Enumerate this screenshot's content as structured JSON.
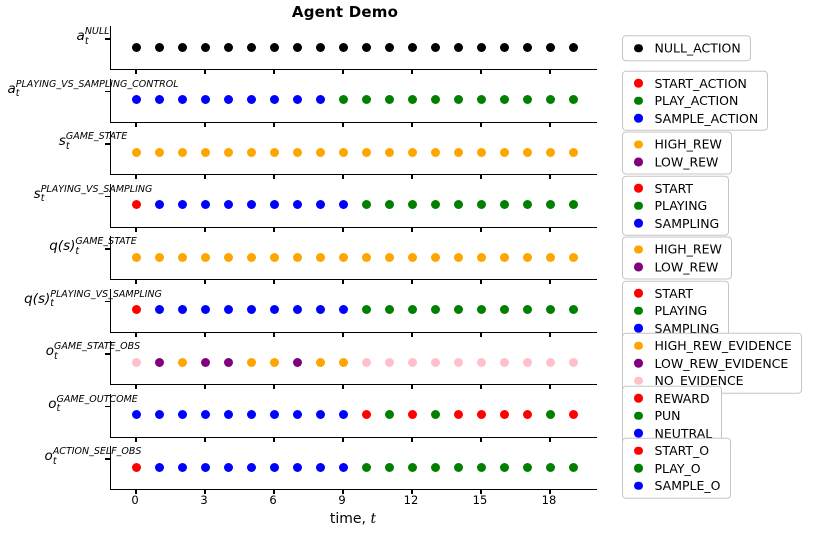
{
  "title": "Agent Demo",
  "xlabel_prefix": "time, ",
  "xlabel_var": "t",
  "chart_data": {
    "type": "scatter",
    "title": "Agent Demo",
    "xlabel": "time, t",
    "x_ticks": [
      0,
      3,
      6,
      9,
      12,
      15,
      18
    ],
    "x_range": [
      0,
      19
    ],
    "n_points": 20,
    "legend_position": "right of each subplot",
    "grid": false,
    "palette": {
      "black": "#000000",
      "red": "#ff0000",
      "green": "#008000",
      "blue": "#0000ff",
      "orange": "#ffa500",
      "purple": "#800080",
      "pink": "#ffc0cb"
    },
    "rows": [
      {
        "ylabel_base": "a",
        "ylabel_sub": "t",
        "ylabel_sup": "NULL",
        "legend": [
          {
            "label": "NULL_ACTION",
            "color": "black"
          }
        ],
        "values": [
          "NULL_ACTION",
          "NULL_ACTION",
          "NULL_ACTION",
          "NULL_ACTION",
          "NULL_ACTION",
          "NULL_ACTION",
          "NULL_ACTION",
          "NULL_ACTION",
          "NULL_ACTION",
          "NULL_ACTION",
          "NULL_ACTION",
          "NULL_ACTION",
          "NULL_ACTION",
          "NULL_ACTION",
          "NULL_ACTION",
          "NULL_ACTION",
          "NULL_ACTION",
          "NULL_ACTION",
          "NULL_ACTION",
          "NULL_ACTION"
        ]
      },
      {
        "ylabel_base": "a",
        "ylabel_sub": "t",
        "ylabel_sup": "PLAYING_VS_SAMPLING_CONTROL",
        "legend": [
          {
            "label": "START_ACTION",
            "color": "red"
          },
          {
            "label": "PLAY_ACTION",
            "color": "green"
          },
          {
            "label": "SAMPLE_ACTION",
            "color": "blue"
          }
        ],
        "values": [
          "SAMPLE_ACTION",
          "SAMPLE_ACTION",
          "SAMPLE_ACTION",
          "SAMPLE_ACTION",
          "SAMPLE_ACTION",
          "SAMPLE_ACTION",
          "SAMPLE_ACTION",
          "SAMPLE_ACTION",
          "SAMPLE_ACTION",
          "PLAY_ACTION",
          "PLAY_ACTION",
          "PLAY_ACTION",
          "PLAY_ACTION",
          "PLAY_ACTION",
          "PLAY_ACTION",
          "PLAY_ACTION",
          "PLAY_ACTION",
          "PLAY_ACTION",
          "PLAY_ACTION",
          "PLAY_ACTION"
        ]
      },
      {
        "ylabel_base": "s",
        "ylabel_sub": "t",
        "ylabel_sup": "GAME_STATE",
        "legend": [
          {
            "label": "HIGH_REW",
            "color": "orange"
          },
          {
            "label": "LOW_REW",
            "color": "purple"
          }
        ],
        "values": [
          "HIGH_REW",
          "HIGH_REW",
          "HIGH_REW",
          "HIGH_REW",
          "HIGH_REW",
          "HIGH_REW",
          "HIGH_REW",
          "HIGH_REW",
          "HIGH_REW",
          "HIGH_REW",
          "HIGH_REW",
          "HIGH_REW",
          "HIGH_REW",
          "HIGH_REW",
          "HIGH_REW",
          "HIGH_REW",
          "HIGH_REW",
          "HIGH_REW",
          "HIGH_REW",
          "HIGH_REW"
        ]
      },
      {
        "ylabel_base": "s",
        "ylabel_sub": "t",
        "ylabel_sup": "PLAYING_VS_SAMPLING",
        "legend": [
          {
            "label": "START",
            "color": "red"
          },
          {
            "label": "PLAYING",
            "color": "green"
          },
          {
            "label": "SAMPLING",
            "color": "blue"
          }
        ],
        "values": [
          "START",
          "SAMPLING",
          "SAMPLING",
          "SAMPLING",
          "SAMPLING",
          "SAMPLING",
          "SAMPLING",
          "SAMPLING",
          "SAMPLING",
          "SAMPLING",
          "PLAYING",
          "PLAYING",
          "PLAYING",
          "PLAYING",
          "PLAYING",
          "PLAYING",
          "PLAYING",
          "PLAYING",
          "PLAYING",
          "PLAYING"
        ]
      },
      {
        "ylabel_base": "q(s)",
        "ylabel_sub": "t",
        "ylabel_sup": "GAME_STATE",
        "legend": [
          {
            "label": "HIGH_REW",
            "color": "orange"
          },
          {
            "label": "LOW_REW",
            "color": "purple"
          }
        ],
        "values": [
          "HIGH_REW",
          "HIGH_REW",
          "HIGH_REW",
          "HIGH_REW",
          "HIGH_REW",
          "HIGH_REW",
          "HIGH_REW",
          "HIGH_REW",
          "HIGH_REW",
          "HIGH_REW",
          "HIGH_REW",
          "HIGH_REW",
          "HIGH_REW",
          "HIGH_REW",
          "HIGH_REW",
          "HIGH_REW",
          "HIGH_REW",
          "HIGH_REW",
          "HIGH_REW",
          "HIGH_REW"
        ]
      },
      {
        "ylabel_base": "q(s)",
        "ylabel_sub": "t",
        "ylabel_sup": "PLAYING_VS_SAMPLING",
        "legend": [
          {
            "label": "START",
            "color": "red"
          },
          {
            "label": "PLAYING",
            "color": "green"
          },
          {
            "label": "SAMPLING",
            "color": "blue"
          }
        ],
        "values": [
          "START",
          "SAMPLING",
          "SAMPLING",
          "SAMPLING",
          "SAMPLING",
          "SAMPLING",
          "SAMPLING",
          "SAMPLING",
          "SAMPLING",
          "SAMPLING",
          "PLAYING",
          "PLAYING",
          "PLAYING",
          "PLAYING",
          "PLAYING",
          "PLAYING",
          "PLAYING",
          "PLAYING",
          "PLAYING",
          "PLAYING"
        ]
      },
      {
        "ylabel_base": "o",
        "ylabel_sub": "t",
        "ylabel_sup": "GAME_STATE_OBS",
        "legend": [
          {
            "label": "HIGH_REW_EVIDENCE",
            "color": "orange"
          },
          {
            "label": "LOW_REW_EVIDENCE",
            "color": "purple"
          },
          {
            "label": "NO_EVIDENCE",
            "color": "pink"
          }
        ],
        "values": [
          "NO_EVIDENCE",
          "LOW_REW_EVIDENCE",
          "HIGH_REW_EVIDENCE",
          "LOW_REW_EVIDENCE",
          "LOW_REW_EVIDENCE",
          "HIGH_REW_EVIDENCE",
          "HIGH_REW_EVIDENCE",
          "LOW_REW_EVIDENCE",
          "HIGH_REW_EVIDENCE",
          "HIGH_REW_EVIDENCE",
          "NO_EVIDENCE",
          "NO_EVIDENCE",
          "NO_EVIDENCE",
          "NO_EVIDENCE",
          "NO_EVIDENCE",
          "NO_EVIDENCE",
          "NO_EVIDENCE",
          "NO_EVIDENCE",
          "NO_EVIDENCE",
          "NO_EVIDENCE"
        ]
      },
      {
        "ylabel_base": "o",
        "ylabel_sub": "t",
        "ylabel_sup": "GAME_OUTCOME",
        "legend": [
          {
            "label": "REWARD",
            "color": "red"
          },
          {
            "label": "PUN",
            "color": "green"
          },
          {
            "label": "NEUTRAL",
            "color": "blue"
          }
        ],
        "values": [
          "NEUTRAL",
          "NEUTRAL",
          "NEUTRAL",
          "NEUTRAL",
          "NEUTRAL",
          "NEUTRAL",
          "NEUTRAL",
          "NEUTRAL",
          "NEUTRAL",
          "NEUTRAL",
          "REWARD",
          "PUN",
          "REWARD",
          "PUN",
          "REWARD",
          "REWARD",
          "REWARD",
          "REWARD",
          "PUN",
          "REWARD"
        ]
      },
      {
        "ylabel_base": "o",
        "ylabel_sub": "t",
        "ylabel_sup": "ACTION_SELF_OBS",
        "legend": [
          {
            "label": "START_O",
            "color": "red"
          },
          {
            "label": "PLAY_O",
            "color": "green"
          },
          {
            "label": "SAMPLE_O",
            "color": "blue"
          }
        ],
        "values": [
          "START_O",
          "SAMPLE_O",
          "SAMPLE_O",
          "SAMPLE_O",
          "SAMPLE_O",
          "SAMPLE_O",
          "SAMPLE_O",
          "SAMPLE_O",
          "SAMPLE_O",
          "SAMPLE_O",
          "PLAY_O",
          "PLAY_O",
          "PLAY_O",
          "PLAY_O",
          "PLAY_O",
          "PLAY_O",
          "PLAY_O",
          "PLAY_O",
          "PLAY_O",
          "PLAY_O"
        ]
      }
    ]
  }
}
